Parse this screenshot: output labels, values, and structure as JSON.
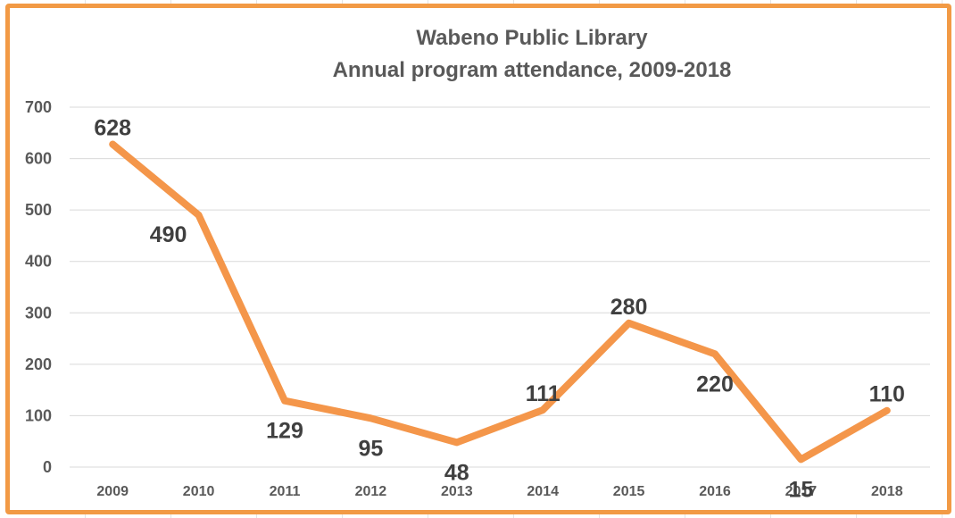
{
  "chart_data": {
    "type": "line",
    "title": "Wabeno Public Library",
    "subtitle": "Annual program attendance, 2009-2018",
    "xlabel": "",
    "ylabel": "",
    "categories": [
      "2009",
      "2010",
      "2011",
      "2012",
      "2013",
      "2014",
      "2015",
      "2016",
      "2017",
      "2018"
    ],
    "series": [
      {
        "values": [
          628,
          490,
          129,
          95,
          48,
          111,
          280,
          220,
          15,
          110
        ],
        "color": "#f4964a"
      }
    ],
    "data_labels": [
      "628",
      "490",
      "129",
      "95",
      "48",
      "111",
      "280",
      "220",
      "15",
      "110"
    ],
    "yticks": [
      0,
      100,
      200,
      300,
      400,
      500,
      600,
      700
    ],
    "ytick_labels": [
      "0",
      "100",
      "200",
      "300",
      "400",
      "500",
      "600",
      "700"
    ],
    "ylim": [
      0,
      700
    ],
    "grid": true,
    "legend": "none",
    "frame_color": "#f29a45"
  }
}
